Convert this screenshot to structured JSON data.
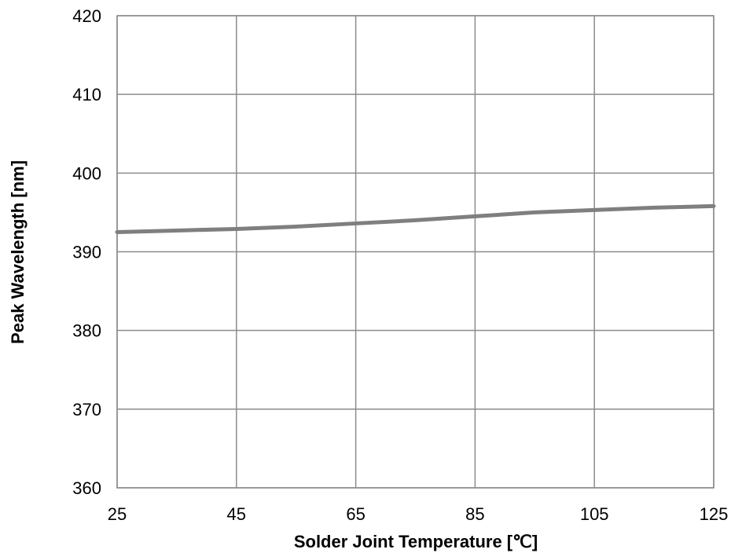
{
  "chart_data": {
    "type": "line",
    "title": "",
    "xlabel": "Solder Joint Temperature [℃]",
    "ylabel": "Peak Wavelength [nm]",
    "xlim": [
      25,
      125
    ],
    "ylim": [
      360,
      420
    ],
    "xticks": [
      25,
      45,
      65,
      85,
      105,
      125
    ],
    "yticks": [
      360,
      370,
      380,
      390,
      400,
      410,
      420
    ],
    "x_tick_labels": [
      "25",
      "45",
      "65",
      "85",
      "105",
      "125"
    ],
    "y_tick_labels": [
      "360",
      "370",
      "380",
      "390",
      "400",
      "410",
      "420"
    ],
    "grid": true,
    "legend": "none",
    "series": [
      {
        "x": [
          25,
          35,
          45,
          55,
          65,
          75,
          85,
          95,
          105,
          115,
          125
        ],
        "y": [
          392.5,
          392.7,
          392.9,
          393.2,
          393.6,
          394.0,
          394.5,
          395.0,
          395.3,
          395.6,
          395.8
        ],
        "color": "#7f7f7f"
      }
    ],
    "colors": {
      "grid": "#8c8c8c",
      "axis": "#8c8c8c",
      "line": "#7f7f7f"
    }
  }
}
